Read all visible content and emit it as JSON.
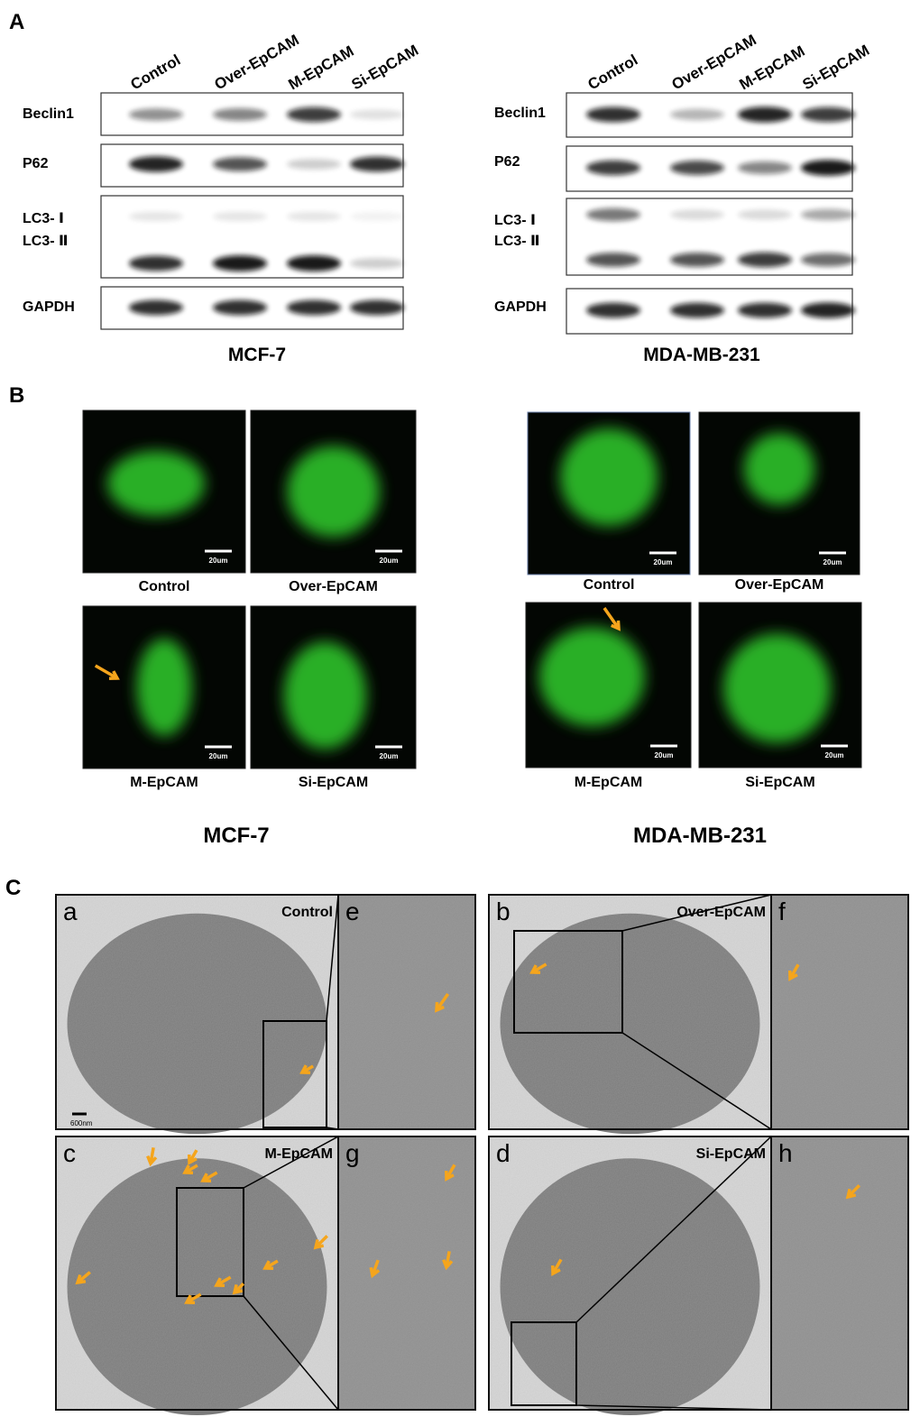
{
  "figure": {
    "panel_a": {
      "label": "A",
      "blots": [
        {
          "cell_line": "MCF-7",
          "lanes": [
            "Control",
            "Over-EpCAM",
            "M-EpCAM",
            "Si-EpCAM"
          ],
          "rows": [
            "Beclin1",
            "P62",
            "LC3- Ⅰ",
            "LC3- Ⅱ",
            "GAPDH"
          ]
        },
        {
          "cell_line": "MDA-MB-231",
          "lanes": [
            "Control",
            "Over-EpCAM",
            "M-EpCAM",
            "Si-EpCAM"
          ],
          "rows": [
            "Beclin1",
            "P62",
            "LC3- Ⅰ",
            "LC3- Ⅱ",
            "GAPDH"
          ]
        }
      ]
    },
    "panel_b": {
      "label": "B",
      "scale_bar": "20um",
      "groups": [
        {
          "cell_line": "MCF-7",
          "captions": [
            "Control",
            "Over-EpCAM",
            "M-EpCAM",
            "Si-EpCAM"
          ]
        },
        {
          "cell_line": "MDA-MB-231",
          "captions": [
            "Control",
            "Over-EpCAM",
            "M-EpCAM",
            "Si-EpCAM"
          ]
        }
      ]
    },
    "panel_c": {
      "label": "C",
      "scale_bar": "600nm",
      "images": [
        {
          "letter": "a",
          "caption": "Control"
        },
        {
          "letter": "e"
        },
        {
          "letter": "b",
          "caption": "Over-EpCAM"
        },
        {
          "letter": "f"
        },
        {
          "letter": "c",
          "caption": "M-EpCAM"
        },
        {
          "letter": "g"
        },
        {
          "letter": "d",
          "caption": "Si-EpCAM"
        },
        {
          "letter": "h"
        }
      ]
    }
  }
}
